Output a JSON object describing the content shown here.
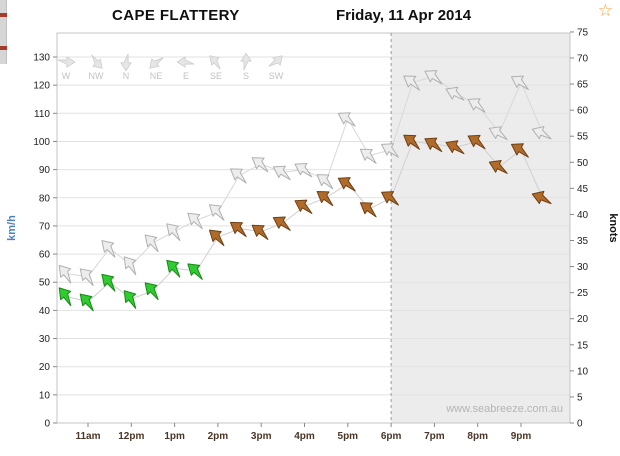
{
  "header": {
    "station": "CAPE FLATTERY",
    "date": "Friday, 11 Apr 2014",
    "favorite_icon": "☆"
  },
  "watermark": "www.seabreeze.com.au",
  "axes": {
    "left_label": "km/h",
    "right_label": "knots",
    "left_ticks": [
      0,
      10,
      20,
      30,
      40,
      50,
      60,
      70,
      80,
      90,
      100,
      110,
      120,
      130
    ],
    "right_ticks": [
      0,
      5,
      10,
      15,
      20,
      25,
      30,
      35,
      40,
      45,
      50,
      55,
      60,
      65,
      70,
      75
    ]
  },
  "chart_data": {
    "type": "scatter",
    "variant": "wind-speed-direction-arrows",
    "title": "CAPE FLATTERY",
    "subtitle": "Friday, 11 Apr 2014",
    "xlabel": "time",
    "ylabel_left": "km/h",
    "ylabel_right": "knots",
    "ylim_kmh": [
      0,
      130
    ],
    "right_ylim_knots": [
      0,
      75
    ],
    "kmh_per_knot": 1.852,
    "forecast_start_t": 18,
    "x_labels": [
      {
        "t": 11,
        "label": "11am"
      },
      {
        "t": 12,
        "label": "12pm"
      },
      {
        "t": 13,
        "label": "1pm"
      },
      {
        "t": 14,
        "label": "2pm"
      },
      {
        "t": 15,
        "label": "3pm"
      },
      {
        "t": 16,
        "label": "4pm"
      },
      {
        "t": 17,
        "label": "5pm"
      },
      {
        "t": 18,
        "label": "6pm"
      },
      {
        "t": 19,
        "label": "7pm"
      },
      {
        "t": 20,
        "label": "8pm"
      },
      {
        "t": 21,
        "label": "9pm"
      }
    ],
    "legend_directions": [
      "W",
      "NW",
      "N",
      "NE",
      "E",
      "SE",
      "S",
      "SW"
    ],
    "series": [
      {
        "name": "gust",
        "point_format": [
          "hour_24_decimal",
          "speed_kmh",
          "wind_from_deg"
        ],
        "points": [
          [
            10.5,
            53,
            140
          ],
          [
            11,
            52,
            135
          ],
          [
            11.5,
            62,
            135
          ],
          [
            12,
            56,
            140
          ],
          [
            12.5,
            64,
            135
          ],
          [
            13,
            68,
            135
          ],
          [
            13.5,
            72,
            130
          ],
          [
            14,
            75,
            130
          ],
          [
            14.5,
            88,
            125
          ],
          [
            15,
            92,
            125
          ],
          [
            15.5,
            89,
            120
          ],
          [
            16,
            90,
            120
          ],
          [
            16.5,
            86,
            125
          ],
          [
            17,
            108,
            120
          ],
          [
            17.5,
            95,
            125
          ],
          [
            18,
            97,
            120
          ],
          [
            18.5,
            121,
            125
          ],
          [
            19,
            123,
            120
          ],
          [
            19.5,
            117,
            115
          ],
          [
            20,
            113,
            120
          ],
          [
            20.5,
            103,
            115
          ],
          [
            21,
            121,
            120
          ],
          [
            21.5,
            103,
            110
          ]
        ]
      },
      {
        "name": "average",
        "point_format": [
          "hour_24_decimal",
          "speed_kmh",
          "wind_from_deg"
        ],
        "points": [
          [
            10.5,
            45,
            140
          ],
          [
            11,
            43,
            135
          ],
          [
            11.5,
            50,
            135
          ],
          [
            12,
            44,
            140
          ],
          [
            12.5,
            47,
            135
          ],
          [
            13,
            55,
            135
          ],
          [
            13.5,
            54,
            130
          ],
          [
            14,
            66,
            130
          ],
          [
            14.5,
            69,
            125
          ],
          [
            15,
            68,
            125
          ],
          [
            15.5,
            71,
            120
          ],
          [
            16,
            77,
            120
          ],
          [
            16.5,
            80,
            125
          ],
          [
            17,
            85,
            120
          ],
          [
            17.5,
            76,
            125
          ],
          [
            18,
            80,
            120
          ],
          [
            18.5,
            100,
            125
          ],
          [
            19,
            99,
            120
          ],
          [
            19.5,
            98,
            115
          ],
          [
            20,
            100,
            120
          ],
          [
            20.5,
            91,
            115
          ],
          [
            21,
            97,
            120
          ],
          [
            21.5,
            80,
            110
          ]
        ]
      }
    ],
    "colors": {
      "moderate_fill": "#2ecc2e",
      "moderate_stroke": "#188818",
      "strong_fill": "#b06a2a",
      "strong_stroke": "#6f4014",
      "gust_fill": "#ededed",
      "gust_stroke": "#b0b0b0",
      "forecast_shade": "#ececec",
      "strong_threshold_kmh": 60
    }
  }
}
